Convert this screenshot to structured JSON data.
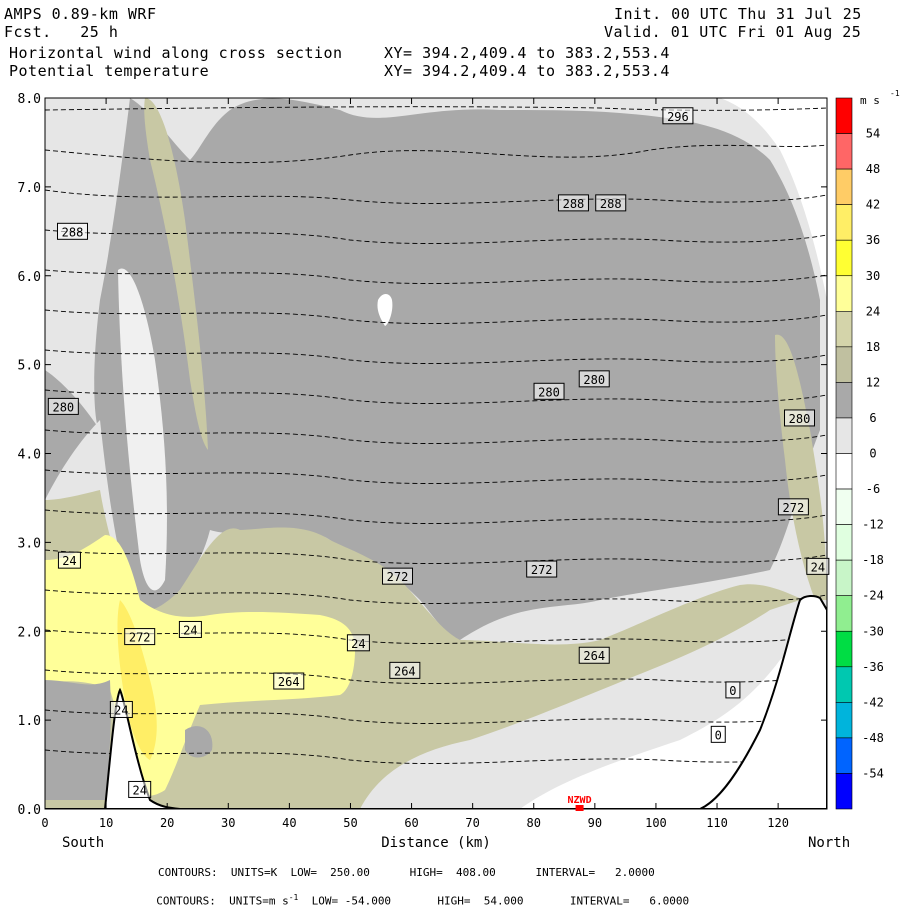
{
  "header": {
    "model": "AMPS 0.89-km WRF",
    "fcst": "Fcst.   25 h",
    "init": "Init. 00 UTC Thu 31 Jul 25",
    "valid": "Valid. 01 UTC Fri 01 Aug 25",
    "field1": "Horizontal wind along cross section",
    "field2": "Potential temperature",
    "xy1": "XY= 394.2,409.4 to 383.2,553.4",
    "xy2": "XY= 394.2,409.4 to 383.2,553.4"
  },
  "footer": {
    "line1": "CONTOURS:  UNITS=K  LOW=  250.00      HIGH=  408.00      INTERVAL=   2.0000",
    "line2": "CONTOURS:  UNITS=m s",
    "line2_exp": "-1",
    "line2_rest": "  LOW= -54.000       HIGH=  54.000       INTERVAL=   6.0000"
  },
  "chart_data": {
    "type": "heatmap",
    "title": "Horizontal wind along cross section / Potential temperature",
    "xlabel": "Distance (km)",
    "ylabel": "",
    "x_end_labels": [
      "South",
      "North"
    ],
    "xlim": [
      0,
      128
    ],
    "ylim": [
      0,
      8
    ],
    "x_ticks": [
      0,
      10,
      20,
      30,
      40,
      50,
      60,
      70,
      80,
      90,
      100,
      110,
      120
    ],
    "y_ticks": [
      "0.0",
      "1.0",
      "2.0",
      "3.0",
      "4.0",
      "5.0",
      "6.0",
      "7.0",
      "8.0"
    ],
    "station": {
      "label": "NZWD",
      "x": 87.5
    },
    "colorbar": {
      "unit": "m s",
      "unit_exp": "-1",
      "labels": [
        "54",
        "48",
        "42",
        "36",
        "30",
        "24",
        "18",
        "12",
        "6",
        "0",
        "-6",
        "-12",
        "-18",
        "-24",
        "-30",
        "-36",
        "-42",
        "-48",
        "-54"
      ],
      "colors": [
        "#ff0000",
        "#ff6666",
        "#ffcc66",
        "#ffee66",
        "#ffff33",
        "#ffff99",
        "#d4d4aa",
        "#c0c0a0",
        "#a9a9a9",
        "#e6e6e6",
        "#ffffff",
        "#f0fff0",
        "#e0ffe0",
        "#c8f5c8",
        "#90ee90",
        "#00dd44",
        "#00c8b0",
        "#00b4dc",
        "#0064ff",
        "#0000ff"
      ]
    },
    "theta_labels": [
      {
        "text": "296",
        "x": 103.6,
        "y": 7.8
      },
      {
        "text": "288",
        "x": 4.5,
        "y": 6.5
      },
      {
        "text": "288",
        "x": 86.5,
        "y": 6.82
      },
      {
        "text": "288",
        "x": 92.6,
        "y": 6.82
      },
      {
        "text": "280",
        "x": 3.0,
        "y": 4.53
      },
      {
        "text": "280",
        "x": 82.5,
        "y": 4.7
      },
      {
        "text": "280",
        "x": 89.9,
        "y": 4.84
      },
      {
        "text": "280",
        "x": 123.5,
        "y": 4.4
      },
      {
        "text": "272",
        "x": 122.5,
        "y": 3.4
      },
      {
        "text": "272",
        "x": 57.7,
        "y": 2.62
      },
      {
        "text": "272",
        "x": 81.3,
        "y": 2.7
      },
      {
        "text": "272",
        "x": 15.5,
        "y": 1.94
      },
      {
        "text": "264",
        "x": 58.9,
        "y": 1.56
      },
      {
        "text": "264",
        "x": 89.9,
        "y": 1.73
      },
      {
        "text": "264",
        "x": 39.9,
        "y": 1.44
      }
    ],
    "wind_labels": [
      {
        "text": "24",
        "x": 4.0,
        "y": 2.8
      },
      {
        "text": "24",
        "x": 23.8,
        "y": 2.02
      },
      {
        "text": "24",
        "x": 51.3,
        "y": 1.87
      },
      {
        "text": "24",
        "x": 12.5,
        "y": 1.12
      },
      {
        "text": "24",
        "x": 15.5,
        "y": 0.22
      },
      {
        "text": "24",
        "x": 126.5,
        "y": 2.73
      },
      {
        "text": "0",
        "x": 112.6,
        "y": 1.34
      },
      {
        "text": "0",
        "x": 110.2,
        "y": 0.84
      }
    ]
  }
}
